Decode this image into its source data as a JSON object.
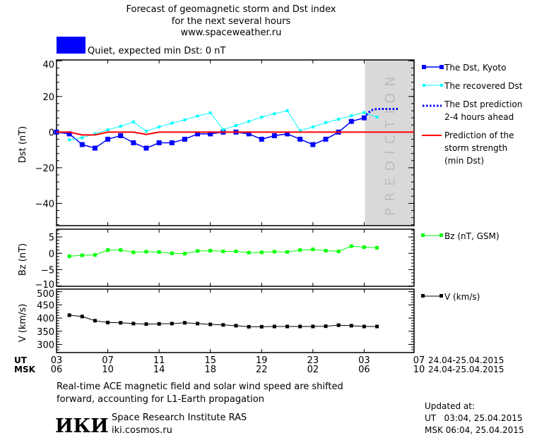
{
  "header": {
    "title_line1": "Forecast of geomagnetic storm and Dst index",
    "title_line2": "for the next several hours",
    "site": "www.spaceweather.ru"
  },
  "status": {
    "color": "#0000ff",
    "text": "Quiet, expected min Dst: 0 nT"
  },
  "colors": {
    "dst": "#0000ff",
    "recovered": "#00ffff",
    "prediction": "#0000ff",
    "strength": "#ff0000",
    "bz": "#00ff00",
    "v": "#000000",
    "prediction_band": "#d9d9d9"
  },
  "chart_data": [
    {
      "type": "line",
      "ylabel": "Dst (nT)",
      "ylim": [
        -52.5,
        40.5
      ],
      "yticks": [
        40,
        20,
        0,
        -20,
        -40
      ],
      "band_label": "PREDICTION",
      "band_start": "25.04 03:04",
      "series": [
        {
          "name": "The Dst, Kyoto",
          "key": "dst",
          "times": [
            "24.04 03:00",
            "24.04 04:00",
            "24.04 05:00",
            "24.04 06:00",
            "24.04 07:00",
            "24.04 08:00",
            "24.04 09:00",
            "24.04 10:00",
            "24.04 11:00",
            "24.04 12:00",
            "24.04 13:00",
            "24.04 14:00",
            "24.04 15:00",
            "24.04 16:00",
            "24.04 17:00",
            "24.04 18:00",
            "24.04 19:00",
            "24.04 20:00",
            "24.04 21:00",
            "24.04 22:00",
            "24.04 23:00",
            "25.04 00:00",
            "25.04 01:00",
            "25.04 02:00",
            "25.04 03:00"
          ],
          "values": [
            0,
            -1,
            -7,
            -9,
            -4,
            -2,
            -6,
            -9,
            -6,
            -6,
            -4,
            -1,
            -1,
            0,
            0,
            -1,
            -4,
            -2,
            -1,
            -4,
            -7,
            -4,
            0,
            6,
            8
          ]
        },
        {
          "name": "The recovered Dst",
          "key": "recovered",
          "times": [
            "24.04 04:00",
            "24.04 05:00",
            "24.04 06:00",
            "24.04 07:00",
            "24.04 08:00",
            "24.04 09:00",
            "24.04 10:00",
            "24.04 11:00",
            "24.04 12:00",
            "24.04 13:00",
            "24.04 14:00",
            "24.04 15:00",
            "24.04 16:00",
            "24.04 17:00",
            "24.04 18:00",
            "24.04 19:00",
            "24.04 20:00",
            "24.04 21:00",
            "24.04 22:00",
            "24.04 23:00",
            "25.04 00:00",
            "25.04 01:00",
            "25.04 02:00",
            "25.04 03:00",
            "25.04 04:00"
          ],
          "values": [
            -4.3,
            -3.2,
            -1,
            1.3,
            3.3,
            5.7,
            0.5,
            2.9,
            5,
            6.9,
            9,
            10.8,
            1.4,
            3.7,
            6,
            8.4,
            10.3,
            12,
            0.8,
            2.9,
            5.3,
            7.2,
            9.2,
            11,
            8.4
          ]
        },
        {
          "name": "The Dst prediction 2-4 hours ahead",
          "key": "prediction",
          "times": [
            "25.04 03:00",
            "25.04 03:20",
            "25.04 03:40",
            "25.04 04:00",
            "25.04 05:45"
          ],
          "values": [
            8,
            11,
            12.5,
            13,
            13
          ]
        },
        {
          "name": "Prediction of the storm strength (min Dst)",
          "key": "strength",
          "times": [
            "24.04 03:00",
            "24.04 04:00",
            "24.04 05:00",
            "24.04 06:00",
            "24.04 07:00",
            "24.04 09:00",
            "24.04 10:00",
            "24.04 11:00",
            "25.04 06:55"
          ],
          "values": [
            0,
            0,
            -1.6,
            -1.6,
            0,
            0,
            -1.3,
            0,
            0
          ]
        }
      ]
    },
    {
      "type": "line",
      "ylabel": "Bz (nT)",
      "ylim": [
        -10.1,
        7.4
      ],
      "yticks": [
        5,
        0,
        -5,
        -10
      ],
      "series": [
        {
          "name": "Bz (nT, GSM)",
          "key": "bz",
          "times": [
            "24.04 04:00",
            "24.04 05:00",
            "24.04 06:00",
            "24.04 07:00",
            "24.04 08:00",
            "24.04 09:00",
            "24.04 10:00",
            "24.04 11:00",
            "24.04 12:00",
            "24.04 13:00",
            "24.04 14:00",
            "24.04 15:00",
            "24.04 16:00",
            "24.04 17:00",
            "24.04 18:00",
            "24.04 19:00",
            "24.04 20:00",
            "24.04 21:00",
            "24.04 22:00",
            "24.04 23:00",
            "25.04 00:00",
            "25.04 01:00",
            "25.04 02:00",
            "25.04 03:00",
            "25.04 04:00"
          ],
          "values": [
            -0.9,
            -0.6,
            -0.5,
            1.0,
            1.0,
            0.3,
            0.5,
            0.4,
            0,
            -0.1,
            0.7,
            0.8,
            0.6,
            0.6,
            0.2,
            0.3,
            0.5,
            0.4,
            1.0,
            1.2,
            0.8,
            0.6,
            2.2,
            1.9,
            1.7
          ]
        }
      ]
    },
    {
      "type": "line",
      "ylabel": "V (km/s)",
      "ylim": [
        269,
        510
      ],
      "yticks": [
        500,
        450,
        400,
        350,
        300
      ],
      "series": [
        {
          "name": "V (km/s)",
          "key": "v",
          "times": [
            "24.04 04:00",
            "24.04 05:00",
            "24.04 06:00",
            "24.04 07:00",
            "24.04 08:00",
            "24.04 09:00",
            "24.04 10:00",
            "24.04 11:00",
            "24.04 12:00",
            "24.04 13:00",
            "24.04 14:00",
            "24.04 15:00",
            "24.04 16:00",
            "24.04 17:00",
            "24.04 18:00",
            "24.04 19:00",
            "24.04 20:00",
            "24.04 21:00",
            "24.04 22:00",
            "24.04 23:00",
            "25.04 00:00",
            "25.04 01:00",
            "25.04 02:00",
            "25.04 03:00",
            "25.04 04:00"
          ],
          "values": [
            411,
            406,
            390,
            383,
            382,
            379,
            377,
            378,
            379,
            382,
            379,
            376,
            374,
            371,
            367,
            367,
            368,
            368,
            368,
            368,
            369,
            373,
            371,
            368,
            368
          ]
        }
      ]
    }
  ],
  "xaxis": {
    "ut_label": "UT",
    "msk_label": "MSK",
    "ut_ticks": [
      "03",
      "07",
      "11",
      "15",
      "19",
      "23",
      "03",
      "07"
    ],
    "msk_ticks": [
      "06",
      "10",
      "14",
      "18",
      "22",
      "02",
      "06",
      "10"
    ],
    "ut_dates": "24.04-25.04.2015",
    "msk_dates": "24.04-25.04.2015"
  },
  "legend": {
    "dst": "The Dst, Kyoto",
    "recovered": "The recovered Dst",
    "prediction_1": "The Dst prediction",
    "prediction_2": "2-4 hours ahead",
    "strength_1": "Prediction of the",
    "strength_2": "storm strength",
    "strength_3": "(min Dst)",
    "bz": "Bz (nT, GSM)",
    "v": "V (km/s)"
  },
  "footer": {
    "note_1": "Real-time ACE magnetic field and solar wind speed are shifted",
    "note_2": "forward, accounting for L1-Earth propagation",
    "logo": "ИКИ",
    "institute": "Space Research Institute RAS",
    "institute_site": "iki.cosmos.ru",
    "updated_label": "Updated at:",
    "updated_ut": "UT   03:04, 25.04.2015",
    "updated_msk": "MSK 06:04, 25.04.2015"
  }
}
